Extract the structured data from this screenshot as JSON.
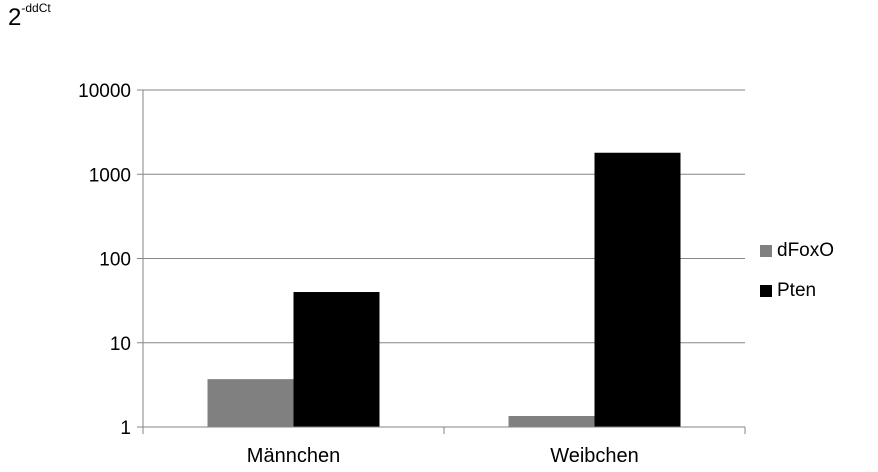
{
  "chart_data": {
    "type": "bar",
    "ylabel_base": "2",
    "ylabel_exponent": "-ddCt",
    "y_scale": "log",
    "ylim": [
      1,
      10000
    ],
    "y_ticks": [
      "1",
      "10",
      "100",
      "1000",
      "10000"
    ],
    "grid": true,
    "legend_position": "right",
    "categories": [
      "Männchen",
      "Weibchen"
    ],
    "series": [
      {
        "name": "dFoxO",
        "color": "#808080",
        "values": [
          3.7,
          1.35
        ]
      },
      {
        "name": "Pten",
        "color": "#000000",
        "values": [
          40,
          1800
        ]
      }
    ]
  }
}
